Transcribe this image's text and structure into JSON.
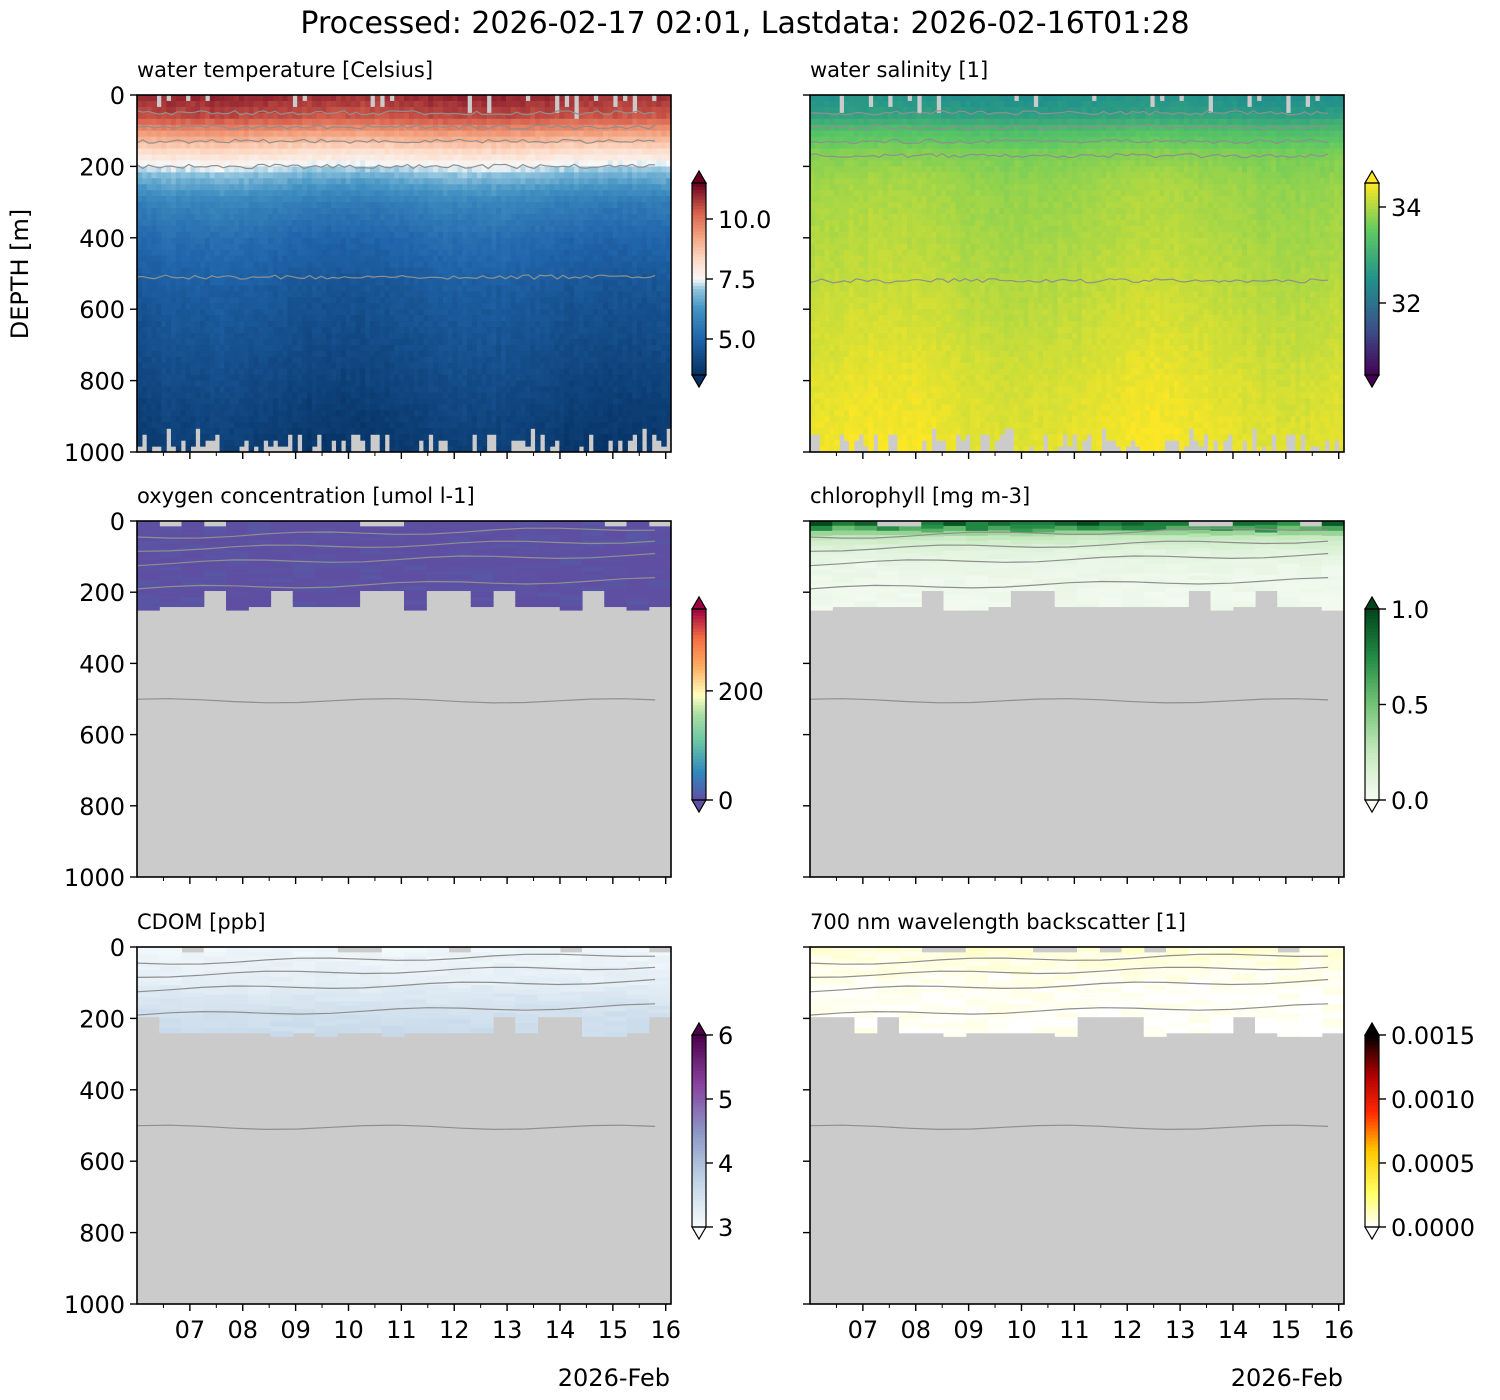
{
  "figure": {
    "title": "Processed: 2026-02-17 02:01, Lastdata: 2026-02-16T01:28",
    "ylabel": "DEPTH [m]",
    "x_footer": "2026-Feb",
    "colors": {
      "nodata": "#cbcbcb",
      "contour": "#8f8f8f",
      "axes": "#000000"
    }
  },
  "chart_data": [
    {
      "type": "heatmap",
      "title": "water temperature [Celsius]",
      "ylabel": "DEPTH [m]",
      "x": [
        "07",
        "08",
        "09",
        "10",
        "11",
        "12",
        "13",
        "14",
        "15",
        "16"
      ],
      "xlim": [
        "2026-02-06",
        "2026-02-16"
      ],
      "yticks": [
        0,
        200,
        400,
        600,
        800,
        1000
      ],
      "ylim": [
        1000,
        0
      ],
      "colormap": "RdBu_r",
      "clim": [
        3.5,
        11.5
      ],
      "cbar_ticks": [
        "5.0",
        "7.5",
        "10.0"
      ],
      "cbar_tick_values": [
        5.0,
        7.5,
        10.0
      ],
      "cbar_extend": "both",
      "sampling": "dense",
      "data_max_depth": 1000,
      "profile": [
        [
          0,
          11.0
        ],
        [
          60,
          10.5
        ],
        [
          110,
          9.3
        ],
        [
          160,
          8.2
        ],
        [
          230,
          6.8
        ],
        [
          300,
          5.8
        ],
        [
          400,
          5.2
        ],
        [
          550,
          4.7
        ],
        [
          750,
          4.3
        ],
        [
          950,
          3.9
        ],
        [
          1000,
          3.8
        ]
      ],
      "contours_m": [
        50,
        90,
        130,
        200,
        510
      ]
    },
    {
      "type": "heatmap",
      "title": "water salinity [1]",
      "x": [
        "07",
        "08",
        "09",
        "10",
        "11",
        "12",
        "13",
        "14",
        "15",
        "16"
      ],
      "xlim": [
        "2026-02-06",
        "2026-02-16"
      ],
      "yticks": [
        0,
        200,
        400,
        600,
        800,
        1000
      ],
      "ylim": [
        1000,
        0
      ],
      "colormap": "viridis",
      "clim": [
        30.5,
        34.5
      ],
      "cbar_ticks": [
        "32",
        "34"
      ],
      "cbar_tick_values": [
        32,
        34
      ],
      "cbar_extend": "both",
      "sampling": "dense",
      "data_max_depth": 1000,
      "profile": [
        [
          0,
          32.5
        ],
        [
          50,
          32.7
        ],
        [
          100,
          33.3
        ],
        [
          160,
          33.7
        ],
        [
          250,
          33.9
        ],
        [
          400,
          34.0
        ],
        [
          600,
          34.15
        ],
        [
          800,
          34.3
        ],
        [
          1000,
          34.4
        ]
      ],
      "contours_m": [
        50,
        90,
        130,
        170,
        520
      ]
    },
    {
      "type": "heatmap",
      "title": "oxygen concentration [umol l-1]",
      "x": [
        "07",
        "08",
        "09",
        "10",
        "11",
        "12",
        "13",
        "14",
        "15",
        "16"
      ],
      "xlim": [
        "2026-02-06",
        "2026-02-16"
      ],
      "yticks": [
        0,
        200,
        400,
        600,
        800,
        1000
      ],
      "ylim": [
        1000,
        0
      ],
      "colormap": "Spectral_r",
      "clim": [
        0,
        350
      ],
      "cbar_ticks": [
        "0",
        "200"
      ],
      "cbar_tick_values": [
        0,
        200
      ],
      "cbar_extend": "both",
      "sampling": "sparse",
      "data_max_depth": 240,
      "profile": [
        [
          0,
          0
        ],
        [
          250,
          0
        ]
      ],
      "contours_m": [
        45,
        80,
        120,
        190,
        505
      ]
    },
    {
      "type": "heatmap",
      "title": "chlorophyll [mg m-3]",
      "x": [
        "07",
        "08",
        "09",
        "10",
        "11",
        "12",
        "13",
        "14",
        "15",
        "16"
      ],
      "xlim": [
        "2026-02-06",
        "2026-02-16"
      ],
      "yticks": [
        0,
        200,
        400,
        600,
        800,
        1000
      ],
      "ylim": [
        1000,
        0
      ],
      "colormap": "Greens",
      "clim": [
        0.0,
        1.0
      ],
      "cbar_ticks": [
        "0.0",
        "0.5",
        "1.0"
      ],
      "cbar_tick_values": [
        0.0,
        0.5,
        1.0
      ],
      "cbar_extend": "both",
      "sampling": "sparse",
      "data_max_depth": 240,
      "profile": [
        [
          0,
          0.85
        ],
        [
          20,
          0.55
        ],
        [
          45,
          0.25
        ],
        [
          80,
          0.12
        ],
        [
          130,
          0.06
        ],
        [
          250,
          0.04
        ]
      ],
      "contours_m": [
        45,
        80,
        120,
        190,
        505
      ]
    },
    {
      "type": "heatmap",
      "title": "CDOM [ppb]",
      "x": [
        "07",
        "08",
        "09",
        "10",
        "11",
        "12",
        "13",
        "14",
        "15",
        "16"
      ],
      "xlim": [
        "2026-02-06",
        "2026-02-16"
      ],
      "yticks": [
        0,
        200,
        400,
        600,
        800,
        1000
      ],
      "ylim": [
        1000,
        0
      ],
      "colormap": "BuPu",
      "clim": [
        3,
        6
      ],
      "cbar_ticks": [
        "3",
        "4",
        "5",
        "6"
      ],
      "cbar_tick_values": [
        3,
        4,
        5,
        6
      ],
      "cbar_extend": "both",
      "sampling": "sparse",
      "data_max_depth": 240,
      "profile": [
        [
          0,
          3.1
        ],
        [
          100,
          3.25
        ],
        [
          180,
          3.5
        ],
        [
          250,
          3.6
        ]
      ],
      "contours_m": [
        45,
        80,
        120,
        190,
        505
      ]
    },
    {
      "type": "heatmap",
      "title": "700 nm wavelength backscatter [1]",
      "x": [
        "07",
        "08",
        "09",
        "10",
        "11",
        "12",
        "13",
        "14",
        "15",
        "16"
      ],
      "xlim": [
        "2026-02-06",
        "2026-02-16"
      ],
      "yticks": [
        0,
        200,
        400,
        600,
        800,
        1000
      ],
      "ylim": [
        1000,
        0
      ],
      "colormap": "hot_r",
      "clim": [
        0.0,
        0.0015
      ],
      "cbar_ticks": [
        "0.0000",
        "0.0005",
        "0.0010",
        "0.0015"
      ],
      "cbar_tick_values": [
        0.0,
        0.0005,
        0.001,
        0.0015
      ],
      "cbar_extend": "both",
      "sampling": "sparse",
      "data_max_depth": 240,
      "profile": [
        [
          0,
          8e-05
        ],
        [
          40,
          5e-05
        ],
        [
          120,
          2e-05
        ],
        [
          250,
          1e-05
        ]
      ],
      "contours_m": [
        45,
        80,
        120,
        190,
        505
      ]
    }
  ]
}
